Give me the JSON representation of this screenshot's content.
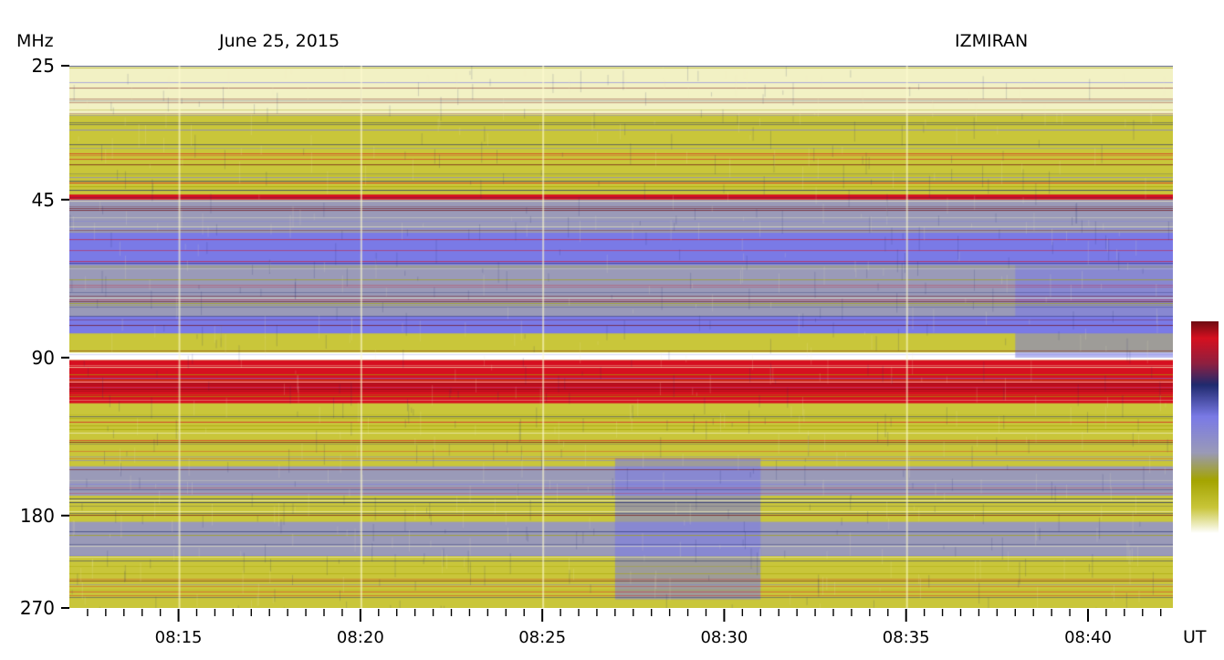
{
  "header": {
    "y_unit": "MHz",
    "date": "June 25, 2015",
    "observatory": "IZMIRAN",
    "x_unit": "UT"
  },
  "colors": {
    "white": "#ffffff",
    "pale": "#f2f1c4",
    "yellow": "#c9c63a",
    "olive": "#a4a400",
    "grey_blue": "#9a9ab8",
    "blue": "#7a7ae6",
    "navy": "#202a6e",
    "red": "#d61020",
    "dark_red": "#6e0c12"
  },
  "chart_data": {
    "type": "heatmap",
    "title": "June 25, 2015",
    "xlabel": "UT",
    "ylabel": "MHz",
    "x_range": [
      "08:12:00",
      "08:42:20"
    ],
    "x_ticks": [
      "08:15",
      "08:20",
      "08:25",
      "08:30",
      "08:35",
      "08:40"
    ],
    "y_ticks": [
      "25",
      "45",
      "90",
      "180",
      "270"
    ],
    "y_scale": "log",
    "y_range_mhz": [
      25,
      270
    ],
    "colorbar": true,
    "bands": [
      {
        "from_mhz": 25,
        "to_mhz": 31,
        "color": "pale"
      },
      {
        "from_mhz": 31,
        "to_mhz": 44,
        "color": "yellow"
      },
      {
        "from_mhz": 44,
        "to_mhz": 45,
        "color": "red"
      },
      {
        "from_mhz": 45,
        "to_mhz": 52,
        "color": "grey_blue"
      },
      {
        "from_mhz": 52,
        "to_mhz": 60,
        "color": "blue"
      },
      {
        "from_mhz": 60,
        "to_mhz": 75,
        "color": "grey_blue"
      },
      {
        "from_mhz": 75,
        "to_mhz": 81,
        "color": "blue"
      },
      {
        "from_mhz": 81,
        "to_mhz": 88,
        "color": "yellow"
      },
      {
        "from_mhz": 88,
        "to_mhz": 91,
        "color": "white"
      },
      {
        "from_mhz": 91,
        "to_mhz": 110,
        "color": "red"
      },
      {
        "from_mhz": 110,
        "to_mhz": 145,
        "color": "yellow"
      },
      {
        "from_mhz": 145,
        "to_mhz": 165,
        "color": "grey_blue"
      },
      {
        "from_mhz": 165,
        "to_mhz": 185,
        "color": "yellow"
      },
      {
        "from_mhz": 185,
        "to_mhz": 215,
        "color": "grey_blue"
      },
      {
        "from_mhz": 215,
        "to_mhz": 270,
        "color": "yellow"
      }
    ],
    "events": [
      {
        "start": "08:27:00",
        "end": "08:31:00",
        "from_mhz": 140,
        "to_mhz": 260,
        "color": "blue"
      },
      {
        "start": "08:38:00",
        "end": "08:42:20",
        "from_mhz": 60,
        "to_mhz": 90,
        "color": "blue"
      }
    ]
  }
}
